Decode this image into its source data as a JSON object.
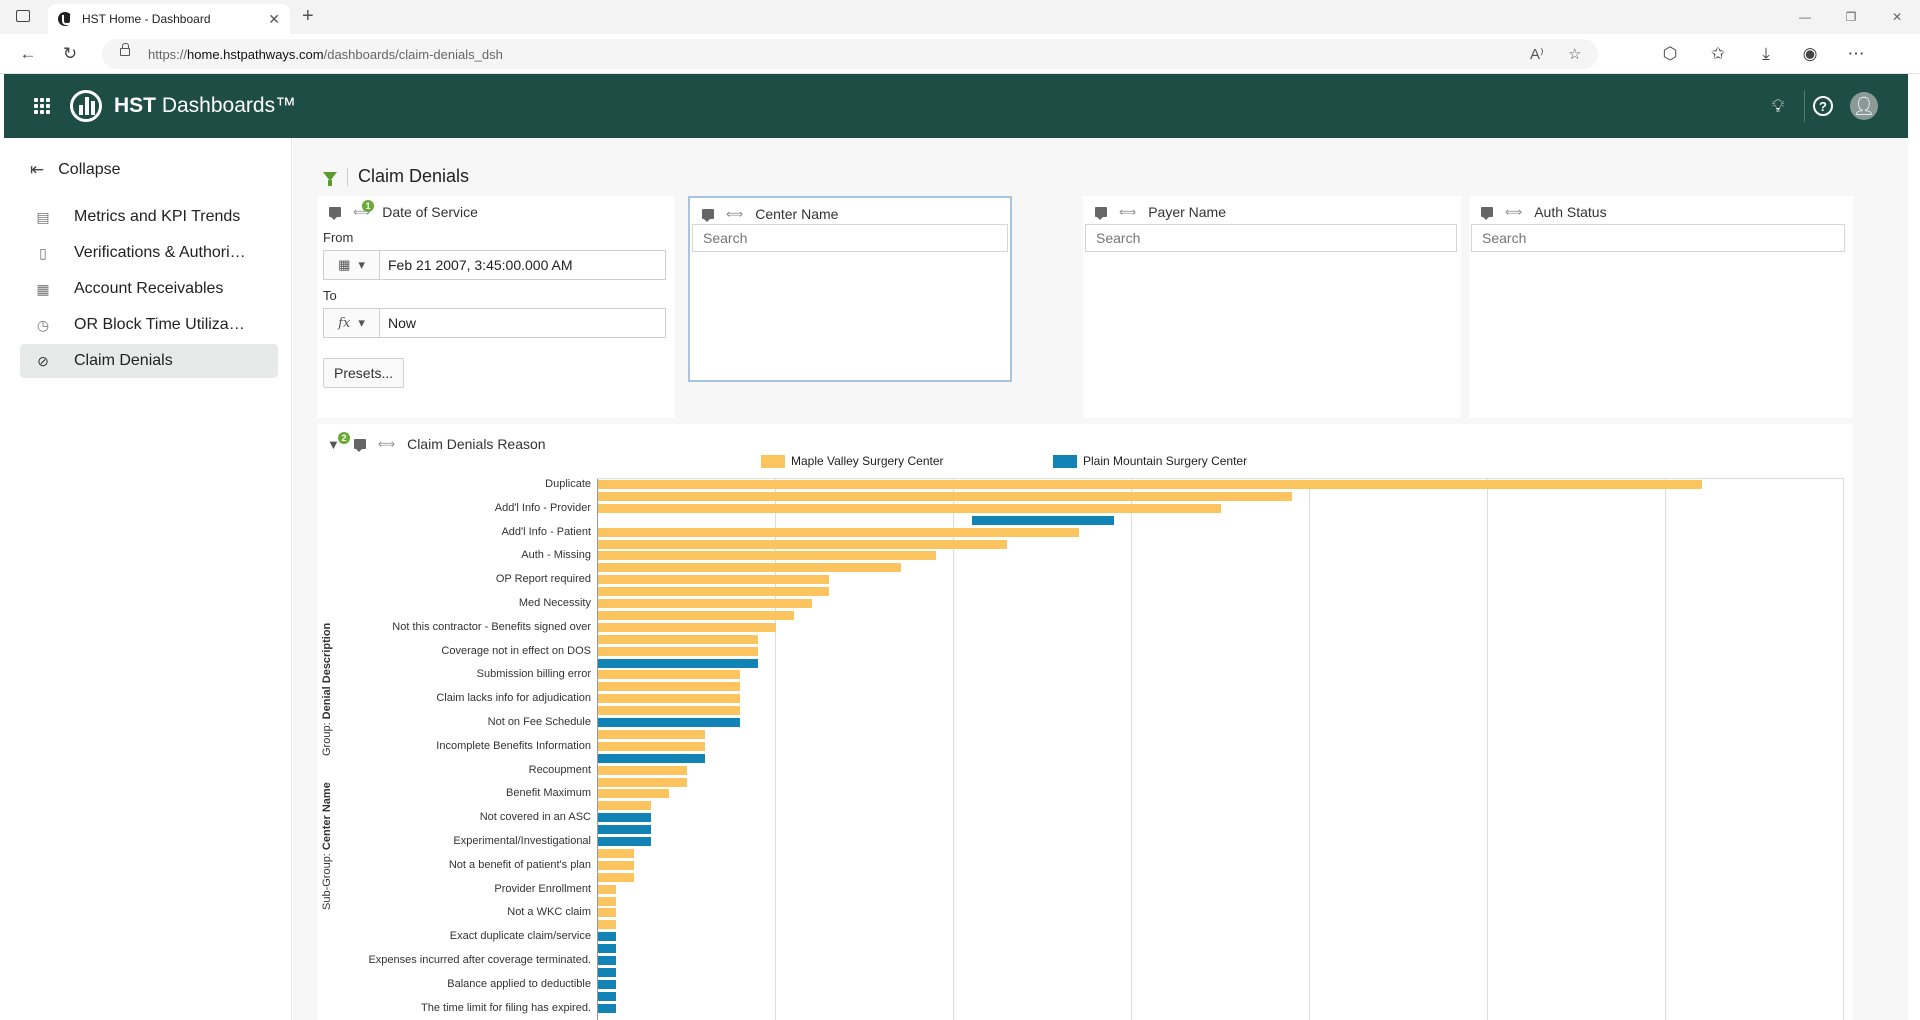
{
  "browser": {
    "tab_title": "HST Home - Dashboard",
    "url_prefix": "https://",
    "url_host": "home.hstpathways.com",
    "url_path": "/dashboards/claim-denials_dsh"
  },
  "app": {
    "brand_main": "HST",
    "brand_sub": " Dashboards™"
  },
  "sidebar": {
    "collapse_label": "Collapse",
    "items": [
      {
        "label": "Metrics and KPI Trends",
        "icon": "chart-icon"
      },
      {
        "label": "Verifications & Authori…",
        "icon": "document-icon"
      },
      {
        "label": "Account Receivables",
        "icon": "calendar-icon"
      },
      {
        "label": "OR Block Time Utiliza…",
        "icon": "clock-icon"
      },
      {
        "label": "Claim Denials",
        "icon": "prohibited-icon"
      }
    ]
  },
  "page": {
    "title": "Claim Denials"
  },
  "filters": {
    "date_of_service": {
      "title": "Date of Service",
      "badge": "1",
      "from_label": "From",
      "from_value": "Feb 21 2007, 3:45:00.000 AM",
      "to_label": "To",
      "to_value": "Now",
      "presets_label": "Presets..."
    },
    "center_name": {
      "title": "Center Name",
      "placeholder": "Search"
    },
    "payer_name": {
      "title": "Payer Name",
      "placeholder": "Search"
    },
    "auth_status": {
      "title": "Auth Status",
      "placeholder": "Search"
    }
  },
  "chart_panel": {
    "title": "Claim Denials Reason",
    "badge": "2",
    "group_label": "Group: ",
    "group_value": "Denial Description",
    "subgroup_label": "Sub-Group: ",
    "subgroup_value": "Center Name"
  },
  "chart_data": {
    "type": "bar",
    "orientation": "horizontal",
    "grid": true,
    "legend_position": "top",
    "xlim": [
      0,
      70
    ],
    "series": [
      {
        "name": "Maple Valley Surgery Center",
        "color": "#fcc45f"
      },
      {
        "name": "Plain Mountain Surgery Center",
        "color": "#1183b4"
      }
    ],
    "categories": [
      "Duplicate",
      "Add'l Info - Provider",
      "Add'l Info - Patient",
      "Auth - Missing",
      "OP Report required",
      "Med Necessity",
      "Not this contractor - Benefits signed over",
      "Coverage not in effect on DOS",
      "Submission billing error",
      "Claim lacks info for adjudication",
      "Not on Fee Schedule",
      "Incomplete Benefits Information",
      "Recoupment",
      "Benefit Maximum",
      "Not covered in an ASC",
      "Experimental/Investigational",
      "Not a benefit of patient's plan",
      "Provider Enrollment",
      "Not a WKC claim",
      "Exact duplicate claim/service",
      "Expenses incurred after coverage terminated.",
      "Balance applied to deductible",
      "The time limit for filing has expired."
    ],
    "rows": [
      {
        "s": 0,
        "v": 62
      },
      {
        "s": 0,
        "v": 39
      },
      {
        "s": 0,
        "v": 35
      },
      {
        "s": 1,
        "v": 8,
        "offset": 21
      },
      {
        "s": 0,
        "v": 27
      },
      {
        "s": 0,
        "v": 23
      },
      {
        "s": 0,
        "v": 19
      },
      {
        "s": 0,
        "v": 17
      },
      {
        "s": 0,
        "v": 13
      },
      {
        "s": 0,
        "v": 13
      },
      {
        "s": 0,
        "v": 12
      },
      {
        "s": 0,
        "v": 11
      },
      {
        "s": 0,
        "v": 10
      },
      {
        "s": 0,
        "v": 9
      },
      {
        "s": 0,
        "v": 9
      },
      {
        "s": 1,
        "v": 9
      },
      {
        "s": 0,
        "v": 8
      },
      {
        "s": 0,
        "v": 8
      },
      {
        "s": 0,
        "v": 8
      },
      {
        "s": 0,
        "v": 8
      },
      {
        "s": 1,
        "v": 8
      },
      {
        "s": 0,
        "v": 6
      },
      {
        "s": 0,
        "v": 6
      },
      {
        "s": 1,
        "v": 6
      },
      {
        "s": 0,
        "v": 5
      },
      {
        "s": 0,
        "v": 5
      },
      {
        "s": 0,
        "v": 4
      },
      {
        "s": 0,
        "v": 3
      },
      {
        "s": 1,
        "v": 3
      },
      {
        "s": 1,
        "v": 3
      },
      {
        "s": 1,
        "v": 3
      },
      {
        "s": 0,
        "v": 2
      },
      {
        "s": 0,
        "v": 2
      },
      {
        "s": 0,
        "v": 2
      },
      {
        "s": 0,
        "v": 1
      },
      {
        "s": 0,
        "v": 1
      },
      {
        "s": 0,
        "v": 1
      },
      {
        "s": 0,
        "v": 1
      },
      {
        "s": 1,
        "v": 1
      },
      {
        "s": 1,
        "v": 1
      },
      {
        "s": 1,
        "v": 1
      },
      {
        "s": 1,
        "v": 1
      },
      {
        "s": 1,
        "v": 1
      },
      {
        "s": 1,
        "v": 1
      },
      {
        "s": 1,
        "v": 1
      }
    ]
  }
}
